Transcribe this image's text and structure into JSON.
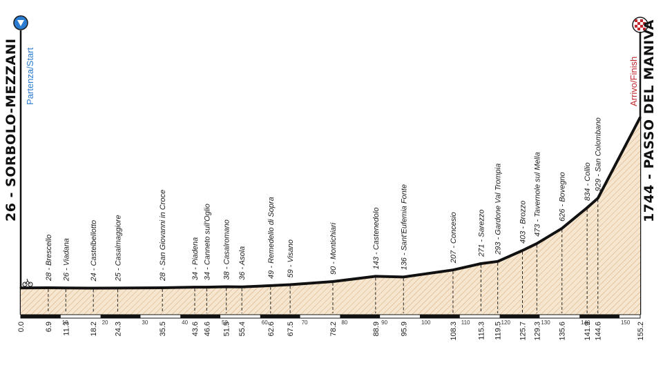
{
  "colors": {
    "start_marker": "#2b7bd0",
    "finish_accent": "#c0282d",
    "fill": "#f6e6cf",
    "hatch": "#d2a878",
    "line": "#111111"
  },
  "start": {
    "name": "26 - SORBOLO-MEZZANI",
    "sub": "Partenza/Start",
    "icon": "start-arrow-icon"
  },
  "finish": {
    "name": "1744 - PASSO DEL MANIVA",
    "sub": "Arrivo/Finish",
    "icon": "finish-flag-icon"
  },
  "chart_data": {
    "type": "area",
    "title": "",
    "xlabel": "",
    "ylabel": "",
    "xlim": [
      0,
      155.2
    ],
    "ylim": [
      0,
      1744
    ],
    "x": [
      0,
      6.9,
      11.3,
      18.2,
      24.3,
      35.5,
      43.6,
      46.6,
      51.5,
      55.4,
      62.6,
      67.5,
      78.2,
      88.9,
      95.9,
      108.3,
      115.3,
      119.5,
      125.7,
      129.3,
      135.6,
      141.9,
      144.6,
      155.2
    ],
    "y": [
      26,
      28,
      26,
      24,
      25,
      28,
      34,
      34,
      38,
      36,
      49,
      59,
      90,
      143,
      136,
      207,
      271,
      293,
      403,
      473,
      626,
      834,
      929,
      1744
    ],
    "waypoints": [
      {
        "km": "6.9",
        "label": "28 - Brescello"
      },
      {
        "km": "11.3",
        "label": "26 - Viadana"
      },
      {
        "km": "18.2",
        "label": "24 - Castelbellotto"
      },
      {
        "km": "24.3",
        "label": "25 - Casalmaggiore"
      },
      {
        "km": "35.5",
        "label": "28 - San Giovanni in Croce"
      },
      {
        "km": "43.6",
        "label": "34 - Piadena"
      },
      {
        "km": "46.6",
        "label": "34 - Canneto sull'Oglio"
      },
      {
        "km": "51.5",
        "label": "38 - Casalromano"
      },
      {
        "km": "55.4",
        "label": "36 - Asola"
      },
      {
        "km": "62.6",
        "label": "49 - Remedello di Sopra"
      },
      {
        "km": "67.5",
        "label": "59 - Visano"
      },
      {
        "km": "78.2",
        "label": "90 - Montichiari"
      },
      {
        "km": "88.9",
        "label": "143 - Castenedolo"
      },
      {
        "km": "95.9",
        "label": "136 - Sant'Eufemia Fonte"
      },
      {
        "km": "108.3",
        "label": "207 - Concesio"
      },
      {
        "km": "115.3",
        "label": "271 - Sarezzo"
      },
      {
        "km": "119.5",
        "label": "293 - Gardone Val Trompia"
      },
      {
        "km": "125.7",
        "label": "403 - Brozzo"
      },
      {
        "km": "129.3",
        "label": "473 - Tavernole sul Mella"
      },
      {
        "km": "135.6",
        "label": "626 - Bovegno"
      },
      {
        "km": "141.9",
        "label": "834 - Collio"
      },
      {
        "km": "144.6",
        "label": "929 - San Colombano"
      }
    ],
    "start_km": "0.0",
    "finish_km": "155.2",
    "ruler_ticks": [
      "10",
      "20",
      "30",
      "40",
      "50",
      "60",
      "70",
      "80",
      "90",
      "100",
      "110",
      "120",
      "130",
      "140",
      "150"
    ]
  }
}
